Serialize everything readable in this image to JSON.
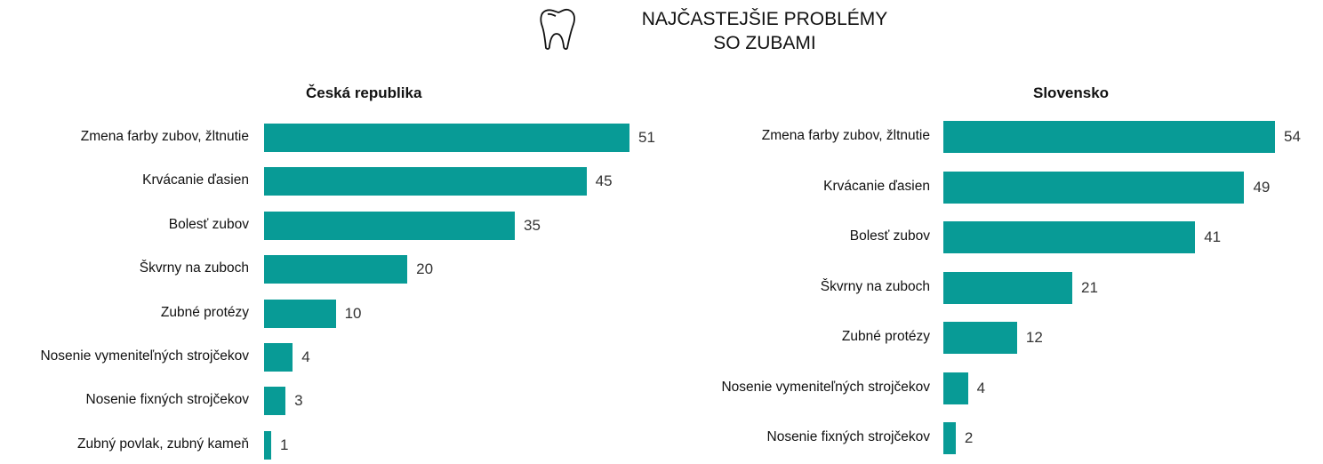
{
  "title_line1": "NAJČASTEJŠIE PROBLÉMY",
  "title_line2": "SO ZUBAMI",
  "icon": "tooth-icon",
  "bar_color": "#089b96",
  "chart_data": [
    {
      "type": "bar",
      "orientation": "horizontal",
      "title": "Česká republika",
      "categories": [
        "Zmena farby zubov, žltnutie",
        "Krvácanie ďasien",
        "Bolesť zubov",
        "Škvrny na zuboch",
        "Zubné protézy",
        "Nosenie vymeniteľných strojčekov",
        "Nosenie fixných strojčekov",
        "Zubný povlak, zubný kameň"
      ],
      "values": [
        51,
        45,
        35,
        20,
        10,
        4,
        3,
        1
      ]
    },
    {
      "type": "bar",
      "orientation": "horizontal",
      "title": "Slovensko",
      "categories": [
        "Zmena farby zubov, žltnutie",
        "Krvácanie ďasien",
        "Bolesť zubov",
        "Škvrny na zuboch",
        "Zubné protézy",
        "Nosenie vymeniteľných strojčekov",
        "Nosenie fixných strojčekov"
      ],
      "values": [
        54,
        49,
        41,
        21,
        12,
        4,
        2
      ]
    }
  ]
}
